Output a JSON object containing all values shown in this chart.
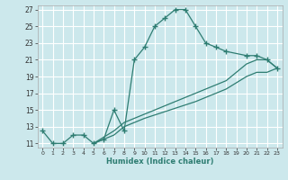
{
  "xlabel": "Humidex (Indice chaleur)",
  "xlim": [
    -0.5,
    23.5
  ],
  "ylim": [
    10.5,
    27.5
  ],
  "xticks": [
    0,
    1,
    2,
    3,
    4,
    5,
    6,
    7,
    8,
    9,
    10,
    11,
    12,
    13,
    14,
    15,
    16,
    17,
    18,
    19,
    20,
    21,
    22,
    23
  ],
  "yticks": [
    11,
    13,
    15,
    17,
    19,
    21,
    23,
    25,
    27
  ],
  "background_color": "#cce8ec",
  "grid_color": "#ffffff",
  "line_color": "#2e7d72",
  "line1_x": [
    0,
    1,
    2,
    3,
    4,
    5,
    6,
    7,
    8,
    9,
    10,
    11,
    12,
    13,
    14,
    15,
    16,
    17,
    18,
    20,
    21,
    22,
    23
  ],
  "line1_y": [
    12.5,
    11.0,
    11.0,
    12.0,
    12.0,
    11.0,
    11.5,
    15.0,
    12.5,
    21.0,
    22.5,
    25.0,
    26.0,
    27.0,
    27.0,
    25.0,
    23.0,
    22.5,
    22.0,
    21.5,
    21.5,
    21.0,
    20.0
  ],
  "line2_x": [
    5,
    7,
    8,
    10,
    15,
    18,
    20,
    21,
    22,
    23
  ],
  "line2_y": [
    11.0,
    12.0,
    13.0,
    14.0,
    16.0,
    17.5,
    19.0,
    19.5,
    19.5,
    20.0
  ],
  "line3_x": [
    5,
    7,
    8,
    10,
    15,
    18,
    20,
    21,
    22,
    23
  ],
  "line3_y": [
    11.0,
    12.5,
    13.5,
    14.5,
    17.0,
    18.5,
    20.5,
    21.0,
    21.0,
    20.0
  ]
}
